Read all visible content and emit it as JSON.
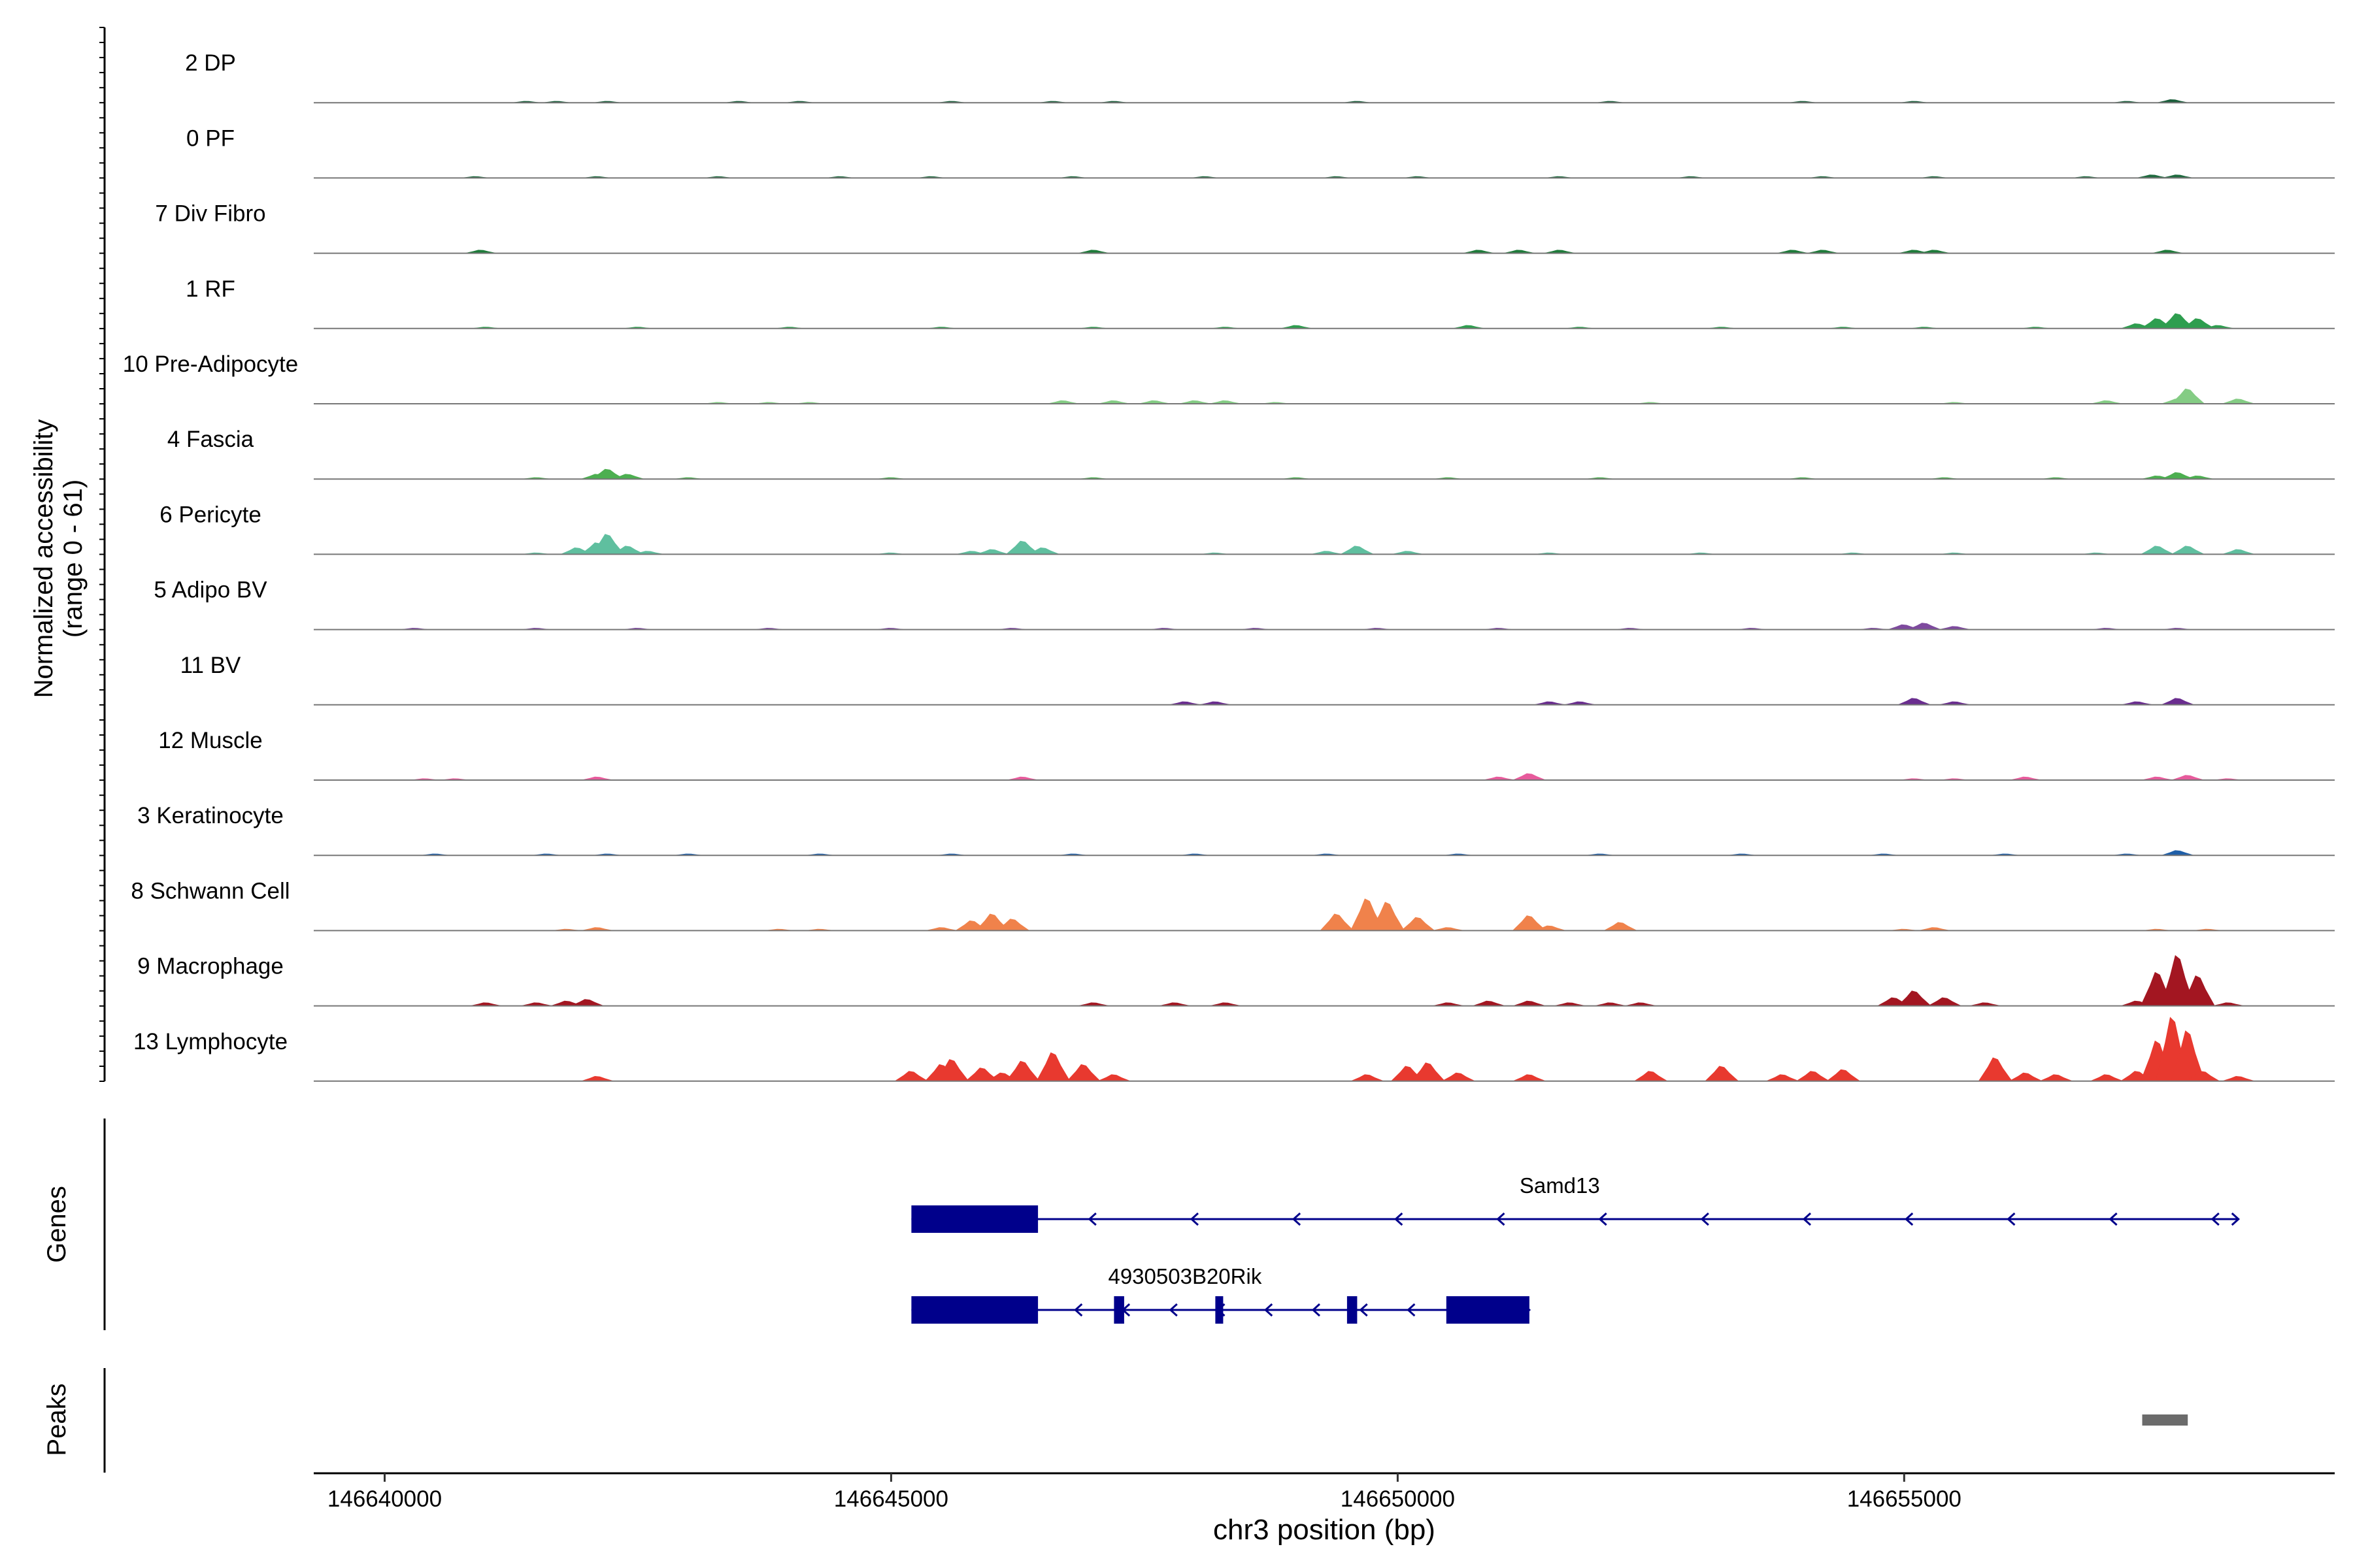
{
  "chart_data": {
    "type": "area",
    "ylabel_line1": "Normalized accessibility",
    "ylabel_line2": "(range 0 - 61)",
    "ylim": [
      0,
      61
    ],
    "xlabel": "chr3 position (bp)",
    "xlim": [
      146639300,
      146659250
    ],
    "x_ticks": [
      146640000,
      146645000,
      146650000,
      146655000
    ],
    "x_tick_labels": [
      "146640000",
      "146645000",
      "146650000",
      "146655000"
    ],
    "tracks": [
      {
        "name": "2 DP",
        "color": "#1b5e3b",
        "x": [
          146641400,
          146641700,
          146642200,
          146643500,
          146644100,
          146645600,
          146646600,
          146647200,
          146649600,
          146652100,
          146654000,
          146655100,
          146657200,
          146657650
        ],
        "y": [
          1,
          1,
          1,
          1,
          1,
          1,
          1,
          1,
          1,
          1,
          1,
          1,
          1,
          2
        ]
      },
      {
        "name": "0 PF",
        "color": "#1f6b3f",
        "x": [
          146640900,
          146642100,
          146643300,
          146644500,
          146645400,
          146646800,
          146648100,
          146649400,
          146650200,
          146651600,
          146652900,
          146654200,
          146655300,
          146656800,
          146657450,
          146657700
        ],
        "y": [
          1,
          1,
          1,
          1,
          1,
          1,
          1,
          1,
          1,
          1,
          1,
          1,
          1,
          1,
          2,
          2
        ]
      },
      {
        "name": "7 Div Fibro",
        "color": "#1e7b3a",
        "x": [
          146640950,
          146647000,
          146650800,
          146651200,
          146651600,
          146653900,
          146654200,
          146655100,
          146655300,
          146657600
        ],
        "y": [
          2,
          2,
          2,
          2,
          2,
          2,
          2,
          2,
          2,
          2
        ]
      },
      {
        "name": "1 RF",
        "color": "#2e9e4f",
        "x": [
          146641000,
          146642500,
          146644000,
          146645500,
          146647000,
          146648300,
          146649000,
          146650700,
          146651800,
          146653200,
          146654400,
          146655200,
          146656300,
          146657300,
          146657500,
          146657700,
          146657900,
          146658100
        ],
        "y": [
          1,
          1,
          1,
          1,
          1,
          1,
          2,
          2,
          1,
          1,
          1,
          1,
          1,
          3,
          6,
          9,
          6,
          2
        ]
      },
      {
        "name": "10 Pre-Adipocyte",
        "color": "#84cc84",
        "x": [
          146643300,
          146643800,
          146644200,
          146646700,
          146647200,
          146647600,
          146648000,
          146648300,
          146648800,
          146652500,
          146655500,
          146657000,
          146657700,
          146657800,
          146658300
        ],
        "y": [
          1,
          1,
          1,
          2,
          2,
          2,
          2,
          2,
          1,
          1,
          1,
          2,
          3,
          9,
          3
        ]
      },
      {
        "name": "4 Fascia",
        "color": "#4caf50",
        "x": [
          146641500,
          146642100,
          146642200,
          146642400,
          146643000,
          146645000,
          146647000,
          146649000,
          146650500,
          146652000,
          146654000,
          146655400,
          146656500,
          146657500,
          146657700,
          146657900
        ],
        "y": [
          1,
          3,
          6,
          3,
          1,
          1,
          1,
          1,
          1,
          1,
          1,
          1,
          1,
          2,
          4,
          2
        ]
      },
      {
        "name": "6 Pericyte",
        "color": "#5fbf9f",
        "x": [
          146641500,
          146641900,
          146642100,
          146642200,
          146642400,
          146642600,
          146645000,
          146645800,
          146646000,
          146646300,
          146646500,
          146648200,
          146649300,
          146649600,
          146650100,
          146651500,
          146653000,
          146654500,
          146655500,
          146656900,
          146657500,
          146657800,
          146658300
        ],
        "y": [
          1,
          4,
          7,
          12,
          5,
          2,
          1,
          2,
          3,
          8,
          4,
          1,
          2,
          5,
          2,
          1,
          1,
          1,
          1,
          1,
          5,
          5,
          3
        ]
      },
      {
        "name": "5 Adipo BV",
        "color": "#7e4a9e",
        "x": [
          146640300,
          146641500,
          146642500,
          146643800,
          146645000,
          146646200,
          146647700,
          146648600,
          146649800,
          146651000,
          146652300,
          146653500,
          146654700,
          146655000,
          146655200,
          146655500,
          146657000,
          146657700
        ],
        "y": [
          1,
          1,
          1,
          1,
          1,
          1,
          1,
          1,
          1,
          1,
          1,
          1,
          1,
          3,
          4,
          2,
          1,
          1
        ]
      },
      {
        "name": "11 BV",
        "color": "#6a2d8f",
        "x": [
          146647900,
          146648200,
          146651500,
          146651800,
          146655100,
          146655500,
          146657300,
          146657700
        ],
        "y": [
          2,
          2,
          2,
          2,
          4,
          2,
          2,
          4
        ]
      },
      {
        "name": "12 Muscle",
        "color": "#e75b9c",
        "x": [
          146640400,
          146640700,
          146642100,
          146646300,
          146651000,
          146651300,
          146655100,
          146655500,
          146656200,
          146657500,
          146657800,
          146658200
        ],
        "y": [
          1,
          1,
          2,
          2,
          2,
          4,
          1,
          1,
          2,
          2,
          3,
          1
        ]
      },
      {
        "name": "3 Keratinocyte",
        "color": "#1f5fa8",
        "x": [
          146640500,
          146641600,
          146642200,
          146643000,
          146644300,
          146645600,
          146646800,
          146648000,
          146649300,
          146650600,
          146652000,
          146653400,
          146654800,
          146656000,
          146657200,
          146657700
        ],
        "y": [
          1,
          1,
          1,
          1,
          1,
          1,
          1,
          1,
          1,
          1,
          1,
          1,
          1,
          1,
          1,
          3
        ]
      },
      {
        "name": "8 Schwann Cell",
        "color": "#f0824b",
        "x": [
          146641800,
          146642100,
          146643900,
          146644300,
          146645500,
          146645800,
          146646000,
          146646200,
          146649400,
          146649700,
          146649900,
          146650200,
          146650500,
          146651300,
          146651500,
          146652200,
          146655000,
          146655300,
          146657500,
          146658000
        ],
        "y": [
          1,
          2,
          1,
          1,
          2,
          6,
          10,
          7,
          10,
          19,
          17,
          8,
          2,
          9,
          3,
          5,
          1,
          2,
          1,
          1
        ]
      },
      {
        "name": "9 Macrophage",
        "color": "#a31621",
        "x": [
          146641000,
          146641500,
          146641800,
          146642000,
          146647000,
          146647800,
          146648300,
          146650500,
          146650900,
          146651300,
          146651700,
          146652100,
          146652400,
          146654900,
          146655100,
          146655400,
          146655800,
          146657300,
          146657500,
          146657700,
          146657900,
          146658200
        ],
        "y": [
          2,
          2,
          3,
          4,
          2,
          2,
          2,
          2,
          3,
          3,
          2,
          2,
          2,
          5,
          9,
          5,
          2,
          3,
          20,
          30,
          18,
          2
        ]
      },
      {
        "name": "13 Lymphocyte",
        "color": "#e8392f",
        "x": [
          146642100,
          146645200,
          146645500,
          146645600,
          146645900,
          146646100,
          146646300,
          146646600,
          146646900,
          146647200,
          146649700,
          146650100,
          146650300,
          146650600,
          146651300,
          146652500,
          146653200,
          146653800,
          146654100,
          146654400,
          146655900,
          146656200,
          146656500,
          146657000,
          146657300,
          146657500,
          146657650,
          146657800,
          146657950,
          146658300
        ],
        "y": [
          3,
          6,
          10,
          13,
          8,
          5,
          12,
          17,
          10,
          4,
          4,
          9,
          11,
          5,
          4,
          6,
          9,
          4,
          6,
          7,
          14,
          5,
          4,
          4,
          6,
          24,
          38,
          30,
          6,
          3
        ]
      }
    ]
  },
  "genes_panel": {
    "label": "Genes",
    "genes": [
      {
        "name": "Samd13",
        "start": 146645200,
        "end": 146658300,
        "strand": "-",
        "exons": [
          [
            146645200,
            146646450
          ]
        ]
      },
      {
        "name": "4930503B20Rik",
        "start": 146645200,
        "end": 146651300,
        "strand": "-",
        "exons": [
          [
            146645200,
            146646450
          ],
          [
            146647200,
            146647300
          ],
          [
            146648200,
            146648270
          ],
          [
            146649500,
            146649600
          ],
          [
            146650480,
            146651300
          ]
        ]
      }
    ],
    "gene_color": "#00008b"
  },
  "peaks_panel": {
    "label": "Peaks",
    "peaks": [
      [
        146657350,
        146657800
      ]
    ],
    "peak_color": "#6b6b6b"
  }
}
